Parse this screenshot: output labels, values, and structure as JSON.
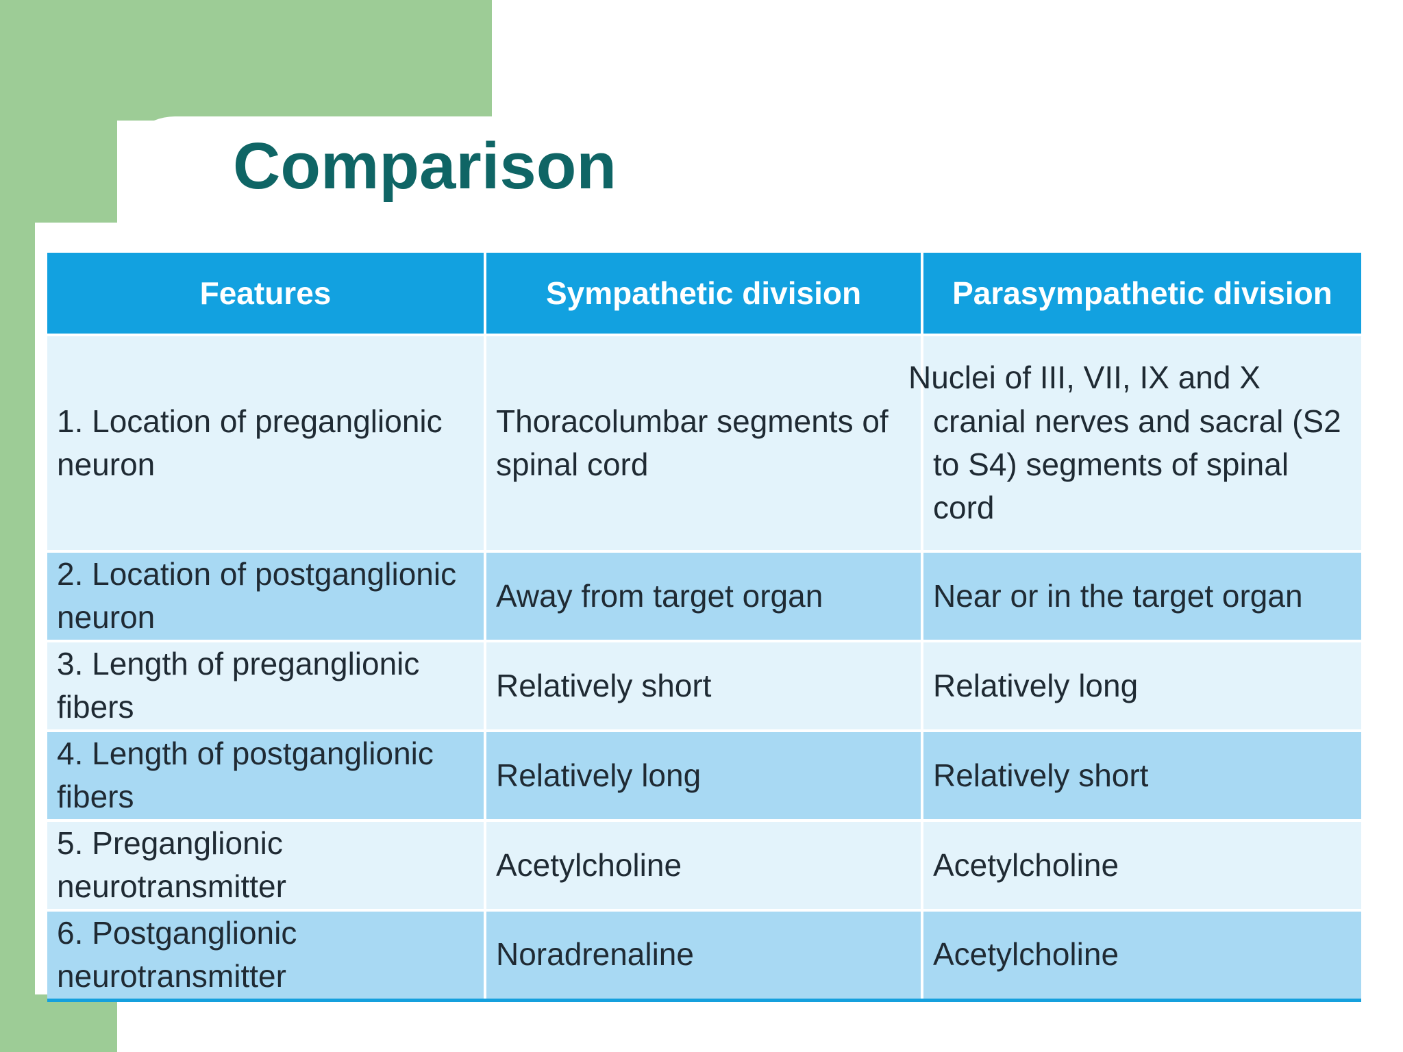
{
  "slide": {
    "title": "Comparison"
  },
  "table": {
    "headers": [
      "Features",
      "Sympathetic division",
      "Parasympathetic division"
    ],
    "rows": [
      [
        "1. Location of preganglionic neuron",
        "Thoracolumbar segments of spinal cord",
        "Nuclei of III, VII, IX and X cranial nerves and sacral (S2 to S4) segments of spinal cord"
      ],
      [
        "2. Location of postganglionic neuron",
        "Away from target organ",
        "Near or in the target organ"
      ],
      [
        "3. Length of preganglionic fibers",
        "Relatively short",
        "Relatively long"
      ],
      [
        "4. Length of postganglionic fibers",
        "Relatively long",
        "Relatively short"
      ],
      [
        "5. Preganglionic neurotransmitter",
        "Acetylcholine",
        "Acetylcholine"
      ],
      [
        "6. Postganglionic neurotransmitter",
        "Noradrenaline",
        "Acetylcholine"
      ]
    ]
  },
  "colors": {
    "background_green": "#9dcc96",
    "title": "#0f6565",
    "header_blue": "#12a1e0",
    "row_light": "#e3f3fb",
    "row_dark": "#a8d9f3"
  }
}
